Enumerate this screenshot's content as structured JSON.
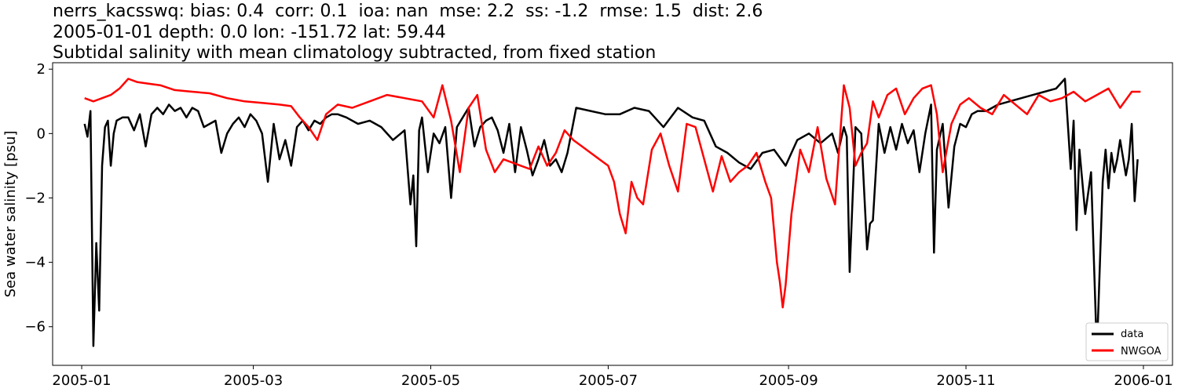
{
  "chart_data": {
    "type": "line",
    "title_lines": [
      "nerrs_kacsswq: bias: 0.4  corr: 0.1  ioa: nan  mse: 2.2  ss: -1.2  rmse: 1.5  dist: 2.6",
      "2005-01-01 depth: 0.0 lon: -151.72 lat: 59.44",
      "Subtidal salinity with mean climatology subtracted, from fixed station"
    ],
    "ylabel": "Sea water salinity [psu]",
    "xlabel": "",
    "xlim": [
      "2004-12-22",
      "2006-01-11"
    ],
    "ylim": [
      -7.2,
      2.2
    ],
    "x_ticks": [
      "2005-01",
      "2005-03",
      "2005-05",
      "2005-07",
      "2005-09",
      "2005-11",
      "2006-01"
    ],
    "y_ticks": [
      2,
      0,
      -2,
      -4,
      -6
    ],
    "y_tick_labels": [
      "2",
      "0",
      "−2",
      "−4",
      "−6"
    ],
    "grid": false,
    "legend_position": "lower-right",
    "series": [
      {
        "name": "data",
        "color": "#000000",
        "x": [
          "2005-01-02",
          "2005-01-03",
          "2005-01-04",
          "2005-01-05",
          "2005-01-06",
          "2005-01-07",
          "2005-01-08",
          "2005-01-09",
          "2005-01-10",
          "2005-01-11",
          "2005-01-12",
          "2005-01-13",
          "2005-01-15",
          "2005-01-17",
          "2005-01-19",
          "2005-01-21",
          "2005-01-23",
          "2005-01-25",
          "2005-01-27",
          "2005-01-29",
          "2005-01-31",
          "2005-02-02",
          "2005-02-04",
          "2005-02-06",
          "2005-02-08",
          "2005-02-10",
          "2005-02-12",
          "2005-02-14",
          "2005-02-16",
          "2005-02-18",
          "2005-02-20",
          "2005-02-22",
          "2005-02-24",
          "2005-02-26",
          "2005-02-28",
          "2005-03-02",
          "2005-03-04",
          "2005-03-06",
          "2005-03-08",
          "2005-03-10",
          "2005-03-12",
          "2005-03-14",
          "2005-03-16",
          "2005-03-18",
          "2005-03-20",
          "2005-03-22",
          "2005-03-24",
          "2005-03-26",
          "2005-03-28",
          "2005-03-30",
          "2005-04-02",
          "2005-04-06",
          "2005-04-10",
          "2005-04-14",
          "2005-04-18",
          "2005-04-22",
          "2005-04-24",
          "2005-04-25",
          "2005-04-26",
          "2005-04-27",
          "2005-04-28",
          "2005-04-30",
          "2005-05-02",
          "2005-05-04",
          "2005-05-06",
          "2005-05-08",
          "2005-05-10",
          "2005-05-12",
          "2005-05-14",
          "2005-05-16",
          "2005-05-18",
          "2005-05-20",
          "2005-05-22",
          "2005-05-24",
          "2005-05-26",
          "2005-05-28",
          "2005-05-30",
          "2005-06-01",
          "2005-06-03",
          "2005-06-05",
          "2005-06-07",
          "2005-06-09",
          "2005-06-11",
          "2005-06-13",
          "2005-06-15",
          "2005-06-17",
          "2005-06-20",
          "2005-06-25",
          "2005-06-30",
          "2005-07-05",
          "2005-07-10",
          "2005-07-15",
          "2005-07-20",
          "2005-07-25",
          "2005-07-30",
          "2005-08-03",
          "2005-08-07",
          "2005-08-11",
          "2005-08-15",
          "2005-08-19",
          "2005-08-23",
          "2005-08-27",
          "2005-08-31",
          "2005-09-04",
          "2005-09-08",
          "2005-09-12",
          "2005-09-16",
          "2005-09-18",
          "2005-09-20",
          "2005-09-21",
          "2005-09-22",
          "2005-09-24",
          "2005-09-26",
          "2005-09-28",
          "2005-09-29",
          "2005-09-30",
          "2005-10-02",
          "2005-10-04",
          "2005-10-06",
          "2005-10-08",
          "2005-10-10",
          "2005-10-12",
          "2005-10-14",
          "2005-10-16",
          "2005-10-18",
          "2005-10-20",
          "2005-10-21",
          "2005-10-22",
          "2005-10-24",
          "2005-10-26",
          "2005-10-28",
          "2005-10-30",
          "2005-11-01",
          "2005-11-03",
          "2005-11-05",
          "2005-11-08",
          "2005-11-12",
          "2005-11-16",
          "2005-11-20",
          "2005-11-24",
          "2005-11-28",
          "2005-12-02",
          "2005-12-05",
          "2005-12-07",
          "2005-12-08",
          "2005-12-09",
          "2005-12-10",
          "2005-12-12",
          "2005-12-14",
          "2005-12-16",
          "2005-12-18",
          "2005-12-19",
          "2005-12-20",
          "2005-12-21",
          "2005-12-22",
          "2005-12-23",
          "2005-12-24",
          "2005-12-26",
          "2005-12-27",
          "2005-12-28",
          "2005-12-29",
          "2005-12-30"
        ],
        "y": [
          0.3,
          -0.1,
          0.7,
          -6.6,
          -3.4,
          -5.5,
          -1.0,
          0.2,
          0.4,
          -1.0,
          0.0,
          0.4,
          0.5,
          0.5,
          0.1,
          0.6,
          -0.4,
          0.6,
          0.8,
          0.6,
          0.9,
          0.7,
          0.8,
          0.5,
          0.8,
          0.7,
          0.2,
          0.3,
          0.4,
          -0.6,
          0.0,
          0.3,
          0.5,
          0.2,
          0.6,
          0.4,
          0.0,
          -1.5,
          0.3,
          -0.8,
          -0.2,
          -1.0,
          0.2,
          0.4,
          0.1,
          0.4,
          0.3,
          0.5,
          0.6,
          0.6,
          0.5,
          0.3,
          0.4,
          0.2,
          -0.2,
          0.1,
          -2.2,
          -1.3,
          -3.5,
          0.1,
          0.5,
          -1.2,
          0.0,
          -0.3,
          0.2,
          -2.0,
          0.2,
          0.5,
          0.8,
          -0.4,
          0.2,
          0.4,
          0.5,
          0.1,
          -0.6,
          0.3,
          -1.2,
          0.2,
          -0.5,
          -1.3,
          -0.8,
          -0.2,
          -1.0,
          -0.8,
          -1.2,
          -0.6,
          0.8,
          0.7,
          0.6,
          0.6,
          0.8,
          0.7,
          0.2,
          0.8,
          0.5,
          0.4,
          -0.4,
          -0.6,
          -0.9,
          -1.1,
          -0.6,
          -0.5,
          -1.0,
          -0.2,
          0.0,
          -0.3,
          0.0,
          -0.6,
          0.2,
          -0.1,
          -4.3,
          0.2,
          0.0,
          -3.6,
          -2.8,
          -2.7,
          0.3,
          -0.6,
          0.2,
          -0.5,
          0.3,
          -0.3,
          0.1,
          -1.2,
          0.0,
          0.9,
          -3.7,
          -0.5,
          0.3,
          -2.3,
          -0.4,
          0.3,
          0.2,
          0.6,
          0.7,
          0.7,
          0.9,
          1.0,
          1.1,
          1.2,
          1.3,
          1.4,
          1.7,
          -1.1,
          0.4,
          -3.0,
          -0.5,
          -2.5,
          -1.2,
          -6.8,
          -1.5,
          -0.5,
          -1.7,
          -0.6,
          -1.2,
          -0.8,
          -0.2,
          -1.3,
          -0.8,
          0.3,
          -2.1,
          -0.8
        ]
      },
      {
        "name": "NWGOA",
        "color": "#ff0000",
        "x": [
          "2005-01-02",
          "2005-01-05",
          "2005-01-08",
          "2005-01-11",
          "2005-01-14",
          "2005-01-17",
          "2005-01-20",
          "2005-01-24",
          "2005-01-28",
          "2005-02-02",
          "2005-02-08",
          "2005-02-14",
          "2005-02-20",
          "2005-02-26",
          "2005-03-04",
          "2005-03-10",
          "2005-03-14",
          "2005-03-17",
          "2005-03-20",
          "2005-03-23",
          "2005-03-26",
          "2005-03-30",
          "2005-04-04",
          "2005-04-10",
          "2005-04-16",
          "2005-04-22",
          "2005-04-28",
          "2005-05-02",
          "2005-05-05",
          "2005-05-08",
          "2005-05-11",
          "2005-05-14",
          "2005-05-17",
          "2005-05-20",
          "2005-05-23",
          "2005-05-26",
          "2005-05-29",
          "2005-06-01",
          "2005-06-04",
          "2005-06-07",
          "2005-06-10",
          "2005-06-13",
          "2005-06-16",
          "2005-06-19",
          "2005-06-22",
          "2005-06-25",
          "2005-06-28",
          "2005-07-01",
          "2005-07-03",
          "2005-07-05",
          "2005-07-07",
          "2005-07-09",
          "2005-07-11",
          "2005-07-13",
          "2005-07-16",
          "2005-07-19",
          "2005-07-22",
          "2005-07-25",
          "2005-07-28",
          "2005-07-31",
          "2005-08-03",
          "2005-08-06",
          "2005-08-09",
          "2005-08-12",
          "2005-08-15",
          "2005-08-18",
          "2005-08-21",
          "2005-08-24",
          "2005-08-26",
          "2005-08-28",
          "2005-08-29",
          "2005-08-30",
          "2005-08-31",
          "2005-09-02",
          "2005-09-05",
          "2005-09-08",
          "2005-09-11",
          "2005-09-14",
          "2005-09-17",
          "2005-09-20",
          "2005-09-22",
          "2005-09-24",
          "2005-09-26",
          "2005-09-28",
          "2005-09-30",
          "2005-10-02",
          "2005-10-05",
          "2005-10-08",
          "2005-10-11",
          "2005-10-14",
          "2005-10-17",
          "2005-10-20",
          "2005-10-22",
          "2005-10-24",
          "2005-10-27",
          "2005-10-30",
          "2005-11-02",
          "2005-11-06",
          "2005-11-10",
          "2005-11-14",
          "2005-11-18",
          "2005-11-22",
          "2005-11-26",
          "2005-11-30",
          "2005-12-04",
          "2005-12-08",
          "2005-12-12",
          "2005-12-16",
          "2005-12-20",
          "2005-12-24",
          "2005-12-28",
          "2005-12-31"
        ],
        "y": [
          1.1,
          1.0,
          1.1,
          1.2,
          1.4,
          1.7,
          1.6,
          1.55,
          1.5,
          1.35,
          1.3,
          1.25,
          1.1,
          1.0,
          0.95,
          0.9,
          0.85,
          0.5,
          0.2,
          -0.2,
          0.6,
          0.9,
          0.8,
          1.0,
          1.2,
          1.1,
          1.0,
          0.5,
          1.5,
          0.4,
          -1.2,
          0.8,
          1.2,
          -0.5,
          -1.2,
          -0.8,
          -0.9,
          -1.0,
          -1.1,
          -0.4,
          -1.0,
          -0.6,
          0.1,
          -0.2,
          -0.4,
          -0.6,
          -0.8,
          -1.0,
          -1.5,
          -2.5,
          -3.1,
          -1.5,
          -2.0,
          -2.2,
          -0.5,
          0.0,
          -1.0,
          -1.8,
          0.3,
          0.2,
          -0.8,
          -1.8,
          -0.7,
          -1.5,
          -1.2,
          -1.0,
          -0.6,
          -1.5,
          -2.0,
          -4.0,
          -4.6,
          -5.4,
          -4.7,
          -2.5,
          -0.5,
          -1.2,
          0.2,
          -1.4,
          -2.2,
          1.5,
          0.8,
          -1.0,
          -0.6,
          -0.3,
          1.0,
          0.5,
          1.2,
          1.4,
          0.6,
          1.1,
          1.4,
          1.5,
          0.6,
          -1.2,
          0.3,
          0.9,
          1.1,
          0.8,
          0.6,
          1.2,
          0.9,
          0.6,
          1.2,
          1.0,
          1.1,
          1.3,
          1.0,
          1.2,
          1.4,
          0.8,
          1.3,
          1.3
        ]
      }
    ]
  }
}
